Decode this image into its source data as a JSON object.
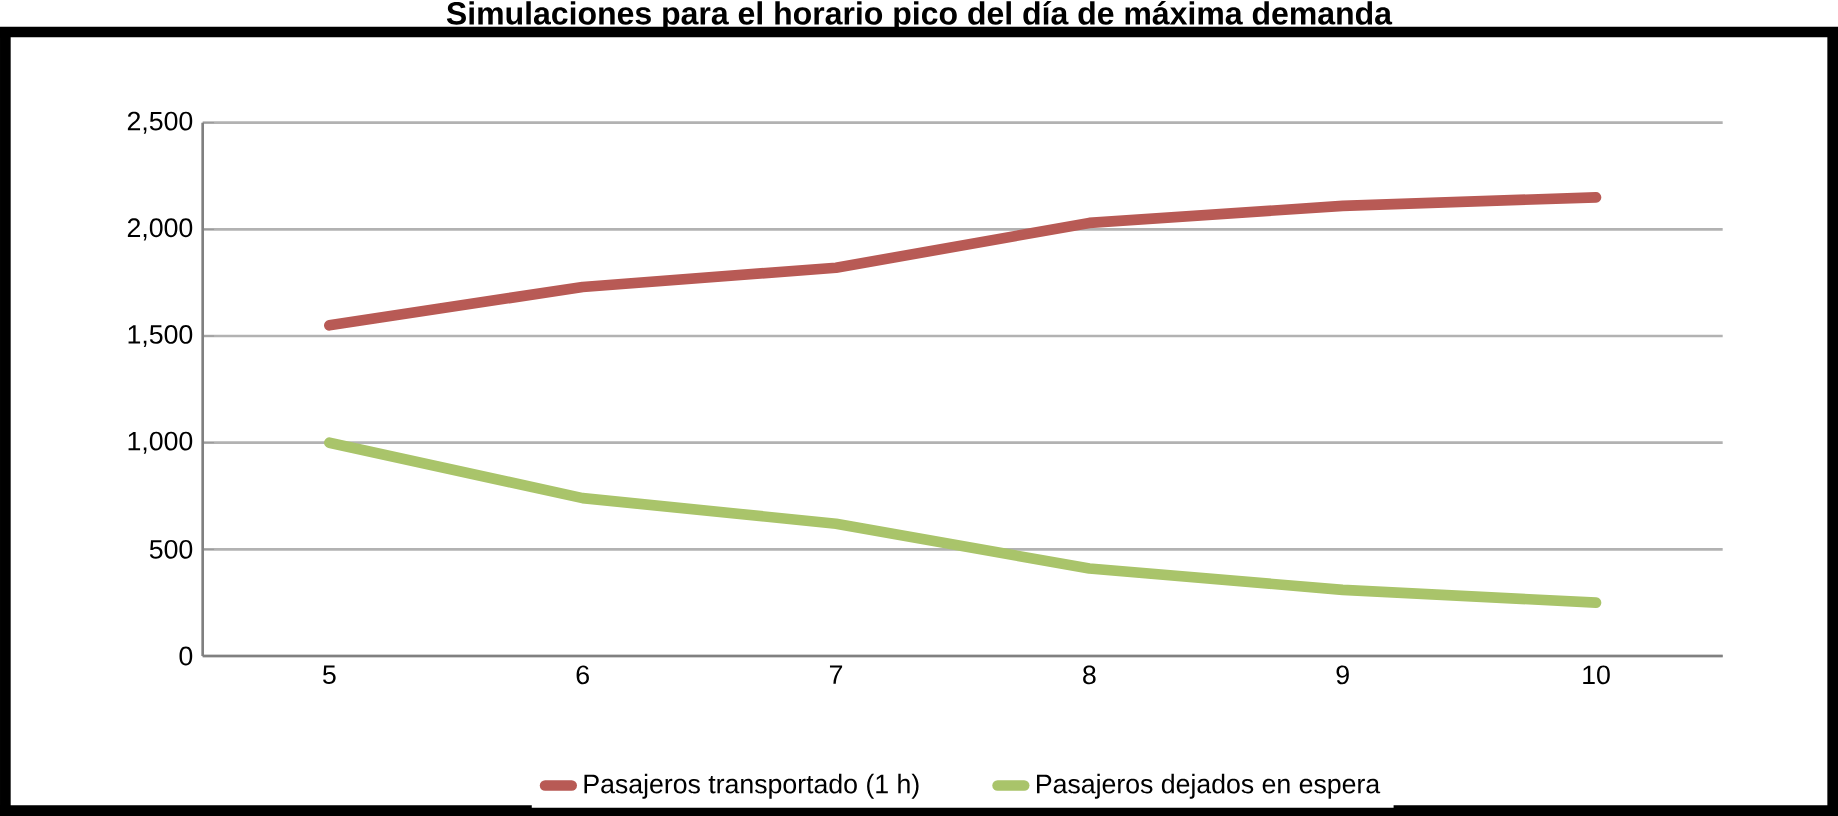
{
  "chart_data": {
    "type": "line",
    "title": "Simulaciones para el horario pico del día de máxima demanda",
    "categories": [
      "5",
      "6",
      "7",
      "8",
      "9",
      "10"
    ],
    "series": [
      {
        "name": "Pasajeros transportado (1 h)",
        "color": "#b85a55",
        "values": [
          1550,
          1730,
          1820,
          2030,
          2110,
          2150
        ]
      },
      {
        "name": "Pasajeros dejados en espera",
        "color": "#a9c46a",
        "values": [
          1000,
          740,
          620,
          410,
          310,
          250
        ]
      }
    ],
    "ylim": [
      0,
      2500
    ],
    "yticks": [
      {
        "value": 0,
        "label": "0"
      },
      {
        "value": 500,
        "label": "500"
      },
      {
        "value": 1000,
        "label": "1,000"
      },
      {
        "value": 1500,
        "label": "1,500"
      },
      {
        "value": 2000,
        "label": "2,000"
      },
      {
        "value": 2500,
        "label": "2,500"
      }
    ],
    "grid": "y",
    "legend": "bottom",
    "marker": "none",
    "line_style": "solid"
  }
}
